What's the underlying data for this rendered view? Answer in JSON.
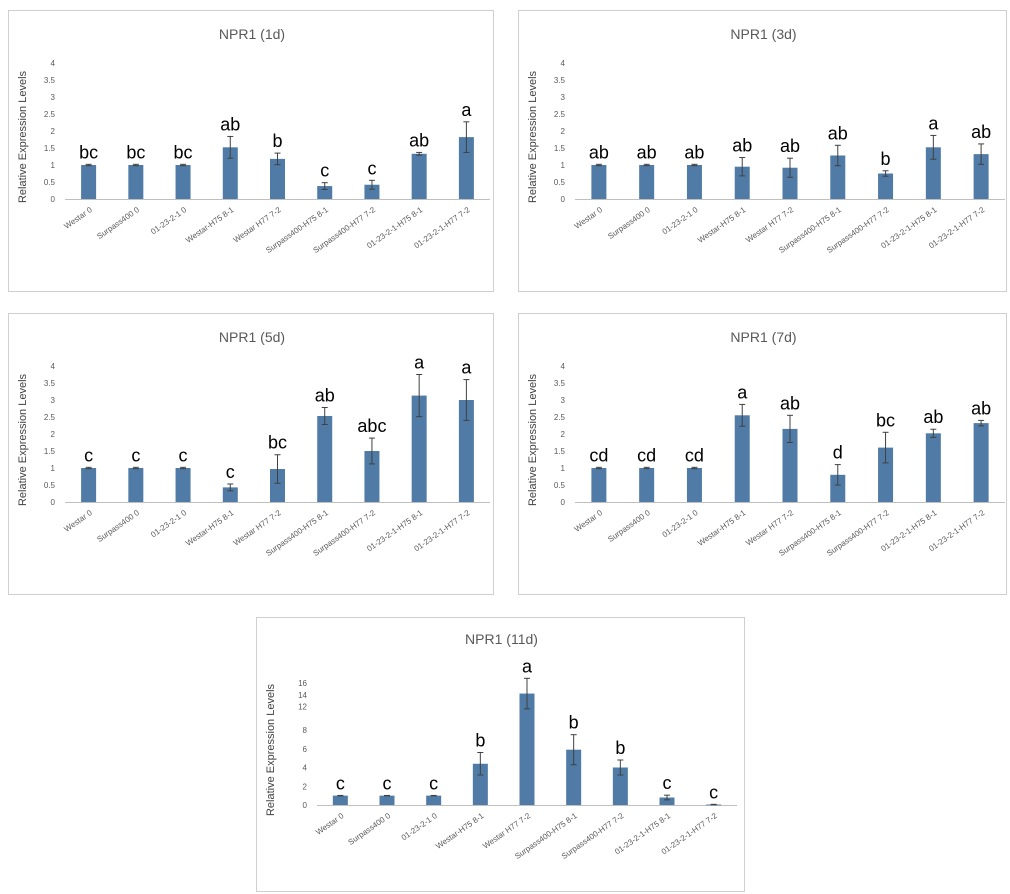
{
  "chart_data": [
    {
      "type": "bar",
      "title": "NPR1 (1d)",
      "ylabel": "Relative Expression Levels",
      "xlabel": "",
      "categories": [
        "Westar 0",
        "Surpass400 0",
        "01-23-2-1 0",
        "Westar-H75 8-1",
        "Westar H77 7-2",
        "Surpass400-H75 8-1",
        "Surpass400-H77 7-2",
        "01-23-2-1-H75 8-1",
        "01-23-2-1-H77 7-2"
      ],
      "values": [
        1.0,
        1.0,
        1.0,
        1.52,
        1.18,
        0.38,
        0.42,
        1.33,
        1.82
      ],
      "errors": [
        0.02,
        0.02,
        0.02,
        0.32,
        0.17,
        0.1,
        0.13,
        0.04,
        0.45
      ],
      "significance": [
        "bc",
        "bc",
        "bc",
        "ab",
        "b",
        "c",
        "c",
        "ab",
        "a"
      ],
      "yticks": [
        "0",
        "0.5",
        "1",
        "1.5",
        "2",
        "2.5",
        "3",
        "3.5",
        "4"
      ],
      "ylim": [
        0,
        4
      ],
      "grid": false,
      "bar_color": "#4f7ba6"
    },
    {
      "type": "bar",
      "title": "NPR1 (3d)",
      "ylabel": "Relative Expression Levels",
      "xlabel": "",
      "categories": [
        "Westar 0",
        "Surpass400 0",
        "01-23-2-1 0",
        "Westar-H75 8-1",
        "Westar H77 7-2",
        "Surpass400-H75 8-1",
        "Surpass400-H77 7-2",
        "01-23-2-1-H75 8-1",
        "01-23-2-1-H77 7-2"
      ],
      "values": [
        1.0,
        1.0,
        1.0,
        0.95,
        0.92,
        1.28,
        0.75,
        1.52,
        1.32
      ],
      "errors": [
        0.02,
        0.02,
        0.02,
        0.27,
        0.28,
        0.3,
        0.08,
        0.35,
        0.3
      ],
      "significance": [
        "ab",
        "ab",
        "ab",
        "ab",
        "ab",
        "ab",
        "b",
        "a",
        "ab"
      ],
      "yticks": [
        "0",
        "0.5",
        "1",
        "1.5",
        "2",
        "2.5",
        "3",
        "3.5",
        "4"
      ],
      "ylim": [
        0,
        4
      ],
      "grid": false,
      "bar_color": "#4f7ba6"
    },
    {
      "type": "bar",
      "title": "NPR1 (5d)",
      "ylabel": "Relative Expression Levels",
      "xlabel": "",
      "categories": [
        "Westar 0",
        "Surpass400 0",
        "01-23-2-1 0",
        "Westar-H75 8-1",
        "Westar H77 7-2",
        "Surpass400-H75 8-1",
        "Surpass400-H77 7-2",
        "01-23-2-1-H75 8-1",
        "01-23-2-1-H77 7-2"
      ],
      "values": [
        1.0,
        1.0,
        1.0,
        0.43,
        0.97,
        2.53,
        1.5,
        3.13,
        3.0
      ],
      "errors": [
        0.02,
        0.02,
        0.02,
        0.1,
        0.42,
        0.25,
        0.38,
        0.62,
        0.6
      ],
      "significance": [
        "c",
        "c",
        "c",
        "c",
        "bc",
        "ab",
        "abc",
        "a",
        "a"
      ],
      "yticks": [
        "0",
        "0.5",
        "1",
        "1.5",
        "2",
        "2.5",
        "3",
        "3.5",
        "4"
      ],
      "ylim": [
        0,
        4
      ],
      "grid": false,
      "bar_color": "#4f7ba6"
    },
    {
      "type": "bar",
      "title": "NPR1 (7d)",
      "ylabel": "Relative Expression Levels",
      "xlabel": "",
      "categories": [
        "Westar 0",
        "Surpass400 0",
        "01-23-2-1 0",
        "Westar-H75 8-1",
        "Westar H77 7-2",
        "Surpass400-H75 8-1",
        "Surpass400-H77 7-2",
        "01-23-2-1-H75 8-1",
        "01-23-2-1-H77 7-2"
      ],
      "values": [
        1.0,
        1.0,
        1.0,
        2.55,
        2.15,
        0.8,
        1.6,
        2.02,
        2.32
      ],
      "errors": [
        0.02,
        0.02,
        0.02,
        0.32,
        0.4,
        0.3,
        0.45,
        0.12,
        0.08
      ],
      "significance": [
        "cd",
        "cd",
        "cd",
        "a",
        "ab",
        "d",
        "bc",
        "ab",
        "ab"
      ],
      "yticks": [
        "0",
        "0.5",
        "1",
        "1.5",
        "2",
        "2.5",
        "3",
        "3.5",
        "4"
      ],
      "ylim": [
        0,
        4
      ],
      "grid": false,
      "bar_color": "#4f7ba6"
    },
    {
      "type": "bar",
      "title": "NPR1 (11d)",
      "ylabel": "Relative Expression Levels",
      "xlabel": "",
      "categories": [
        "Westar 0",
        "Surpass400 0",
        "01-23-2-1 0",
        "Westar-H75 8-1",
        "Westar H77 7-2",
        "Surpass400-H75 8-1",
        "Surpass400-H77 7-2",
        "01-23-2-1-H75 8-1",
        "01-23-2-1-H77 7-2"
      ],
      "values": [
        1.0,
        1.0,
        1.0,
        4.4,
        14.2,
        5.9,
        4.0,
        0.8,
        0.05
      ],
      "errors": [
        0.02,
        0.02,
        0.02,
        1.2,
        2.6,
        1.6,
        0.8,
        0.25,
        0.02
      ],
      "significance": [
        "c",
        "c",
        "c",
        "b",
        "a",
        "b",
        "b",
        "c",
        "c"
      ],
      "yticks": [
        "0",
        "2",
        "4",
        "6",
        "8",
        "12",
        "14",
        "16"
      ],
      "ylim": [
        0,
        17
      ],
      "axis_break": [
        8,
        12
      ],
      "grid": false,
      "bar_color": "#4f7ba6"
    }
  ]
}
